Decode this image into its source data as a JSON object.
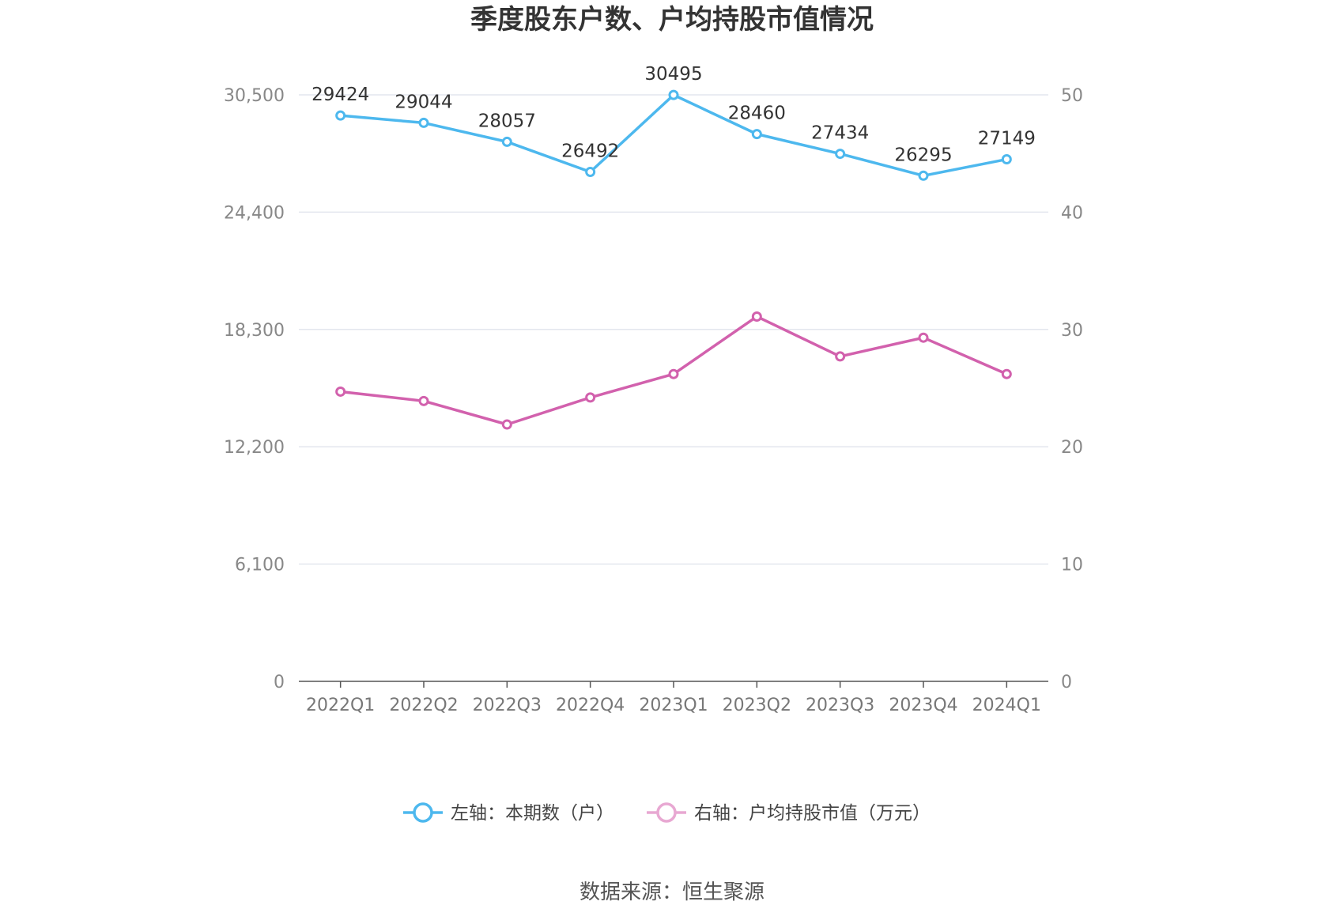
{
  "chart_data": {
    "type": "line",
    "title": "季度股东户数、户均持股市值情况",
    "categories": [
      "2022Q1",
      "2022Q2",
      "2022Q3",
      "2022Q4",
      "2023Q1",
      "2023Q2",
      "2023Q3",
      "2023Q4",
      "2024Q1"
    ],
    "left_axis": {
      "ylim": [
        0,
        30500
      ],
      "ticks": [
        "0",
        "6,100",
        "12,200",
        "18,300",
        "24,400",
        "30,500"
      ]
    },
    "right_axis": {
      "ylim": [
        0,
        50
      ],
      "ticks": [
        "0",
        "10",
        "20",
        "30",
        "40",
        "50"
      ]
    },
    "grid": true,
    "legend_placement": "bottom-center",
    "series": [
      {
        "name": "左轴：本期数（户）",
        "axis": "left",
        "color": "#4db8ee",
        "values": [
          29424,
          29044,
          28057,
          26492,
          30495,
          28460,
          27434,
          26295,
          27149
        ],
        "show_labels": true
      },
      {
        "name": "右轴：户均持股市值（万元）",
        "axis": "right",
        "color": "#d261ad",
        "legend_color": "#e8a8d2",
        "values": [
          24.7,
          23.9,
          21.9,
          24.2,
          26.2,
          31.1,
          27.7,
          29.3,
          26.2
        ],
        "show_labels": false
      }
    ]
  },
  "source": "数据来源：恒生聚源"
}
